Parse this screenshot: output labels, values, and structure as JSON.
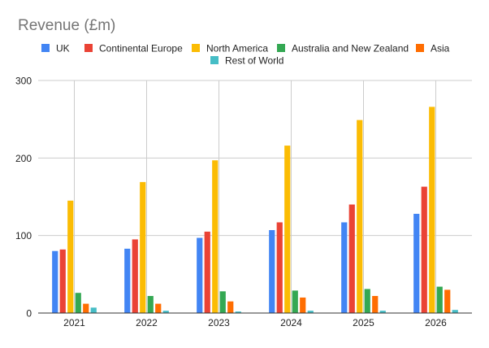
{
  "chart_data": {
    "type": "bar",
    "title": "Revenue (£m)",
    "xlabel": "",
    "ylabel": "",
    "categories": [
      "2021",
      "2022",
      "2023",
      "2024",
      "2025",
      "2026"
    ],
    "ylim": [
      0,
      300
    ],
    "yticks": [
      0,
      100,
      200,
      300
    ],
    "grid": true,
    "legend_position": "top",
    "series": [
      {
        "name": "UK",
        "color": "#4285F4",
        "values": [
          80,
          83,
          97,
          107,
          117,
          128
        ]
      },
      {
        "name": "Continental Europe",
        "color": "#EA4335",
        "values": [
          82,
          95,
          105,
          117,
          140,
          163
        ]
      },
      {
        "name": "North America",
        "color": "#FBBC04",
        "values": [
          145,
          169,
          197,
          216,
          249,
          266
        ]
      },
      {
        "name": "Australia and New Zealand",
        "color": "#34A853",
        "values": [
          26,
          22,
          28,
          29,
          31,
          34
        ]
      },
      {
        "name": "Asia",
        "color": "#FF6D01",
        "values": [
          12,
          12,
          15,
          20,
          22,
          30
        ]
      },
      {
        "name": "Rest of World",
        "color": "#46BDC6",
        "values": [
          7,
          3,
          2,
          3,
          3,
          4
        ]
      }
    ]
  }
}
